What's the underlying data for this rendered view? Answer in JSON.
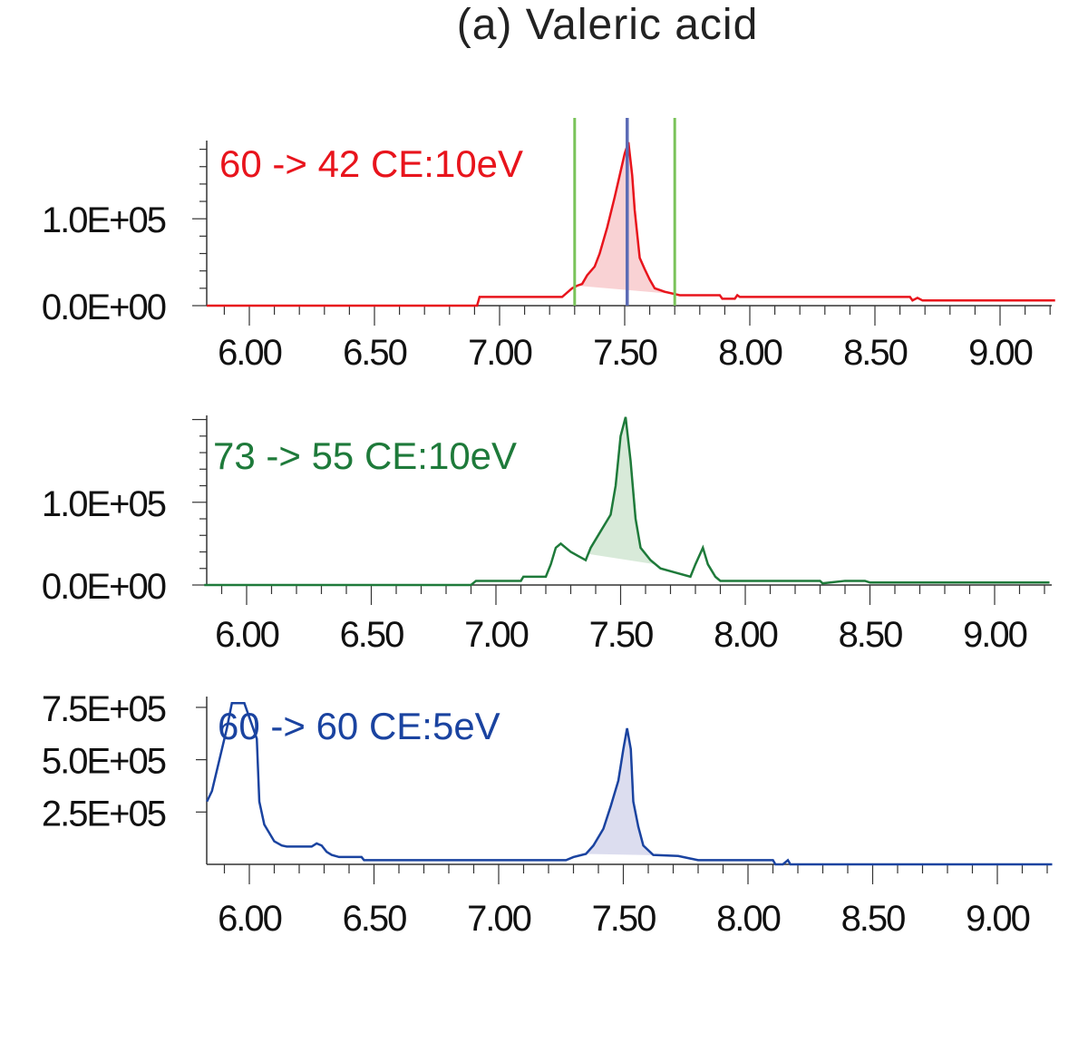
{
  "title": "(a) Valeric acid",
  "chart_data": [
    {
      "type": "line",
      "series_name": "60 -> 42 CE:10eV",
      "color": "#e8141c",
      "fill_color": "#f9d2d4",
      "xlim": [
        5.83,
        9.22
      ],
      "ylim": [
        0,
        190000
      ],
      "x_ticks": [
        "6.00",
        "6.50",
        "7.00",
        "7.50",
        "8.00",
        "8.50",
        "9.00"
      ],
      "y_ticks": [
        {
          "value": 0,
          "label": "0.0E+00"
        },
        {
          "value": 100000,
          "label": "1.0E+05"
        }
      ],
      "integration_bounds": [
        7.3,
        7.7
      ],
      "retention_marker": 7.51,
      "bound_color": "#7ac35a",
      "marker_color": "#5b6bb5",
      "shaded_range": [
        7.31,
        7.7
      ],
      "points": [
        [
          5.83,
          0
        ],
        [
          6.91,
          0
        ],
        [
          6.92,
          10000
        ],
        [
          7.25,
          10000
        ],
        [
          7.29,
          20000
        ],
        [
          7.31,
          23000
        ],
        [
          7.33,
          25000
        ],
        [
          7.35,
          35000
        ],
        [
          7.38,
          45000
        ],
        [
          7.4,
          60000
        ],
        [
          7.43,
          90000
        ],
        [
          7.46,
          125000
        ],
        [
          7.48,
          150000
        ],
        [
          7.5,
          175000
        ],
        [
          7.515,
          188000
        ],
        [
          7.53,
          150000
        ],
        [
          7.54,
          110000
        ],
        [
          7.56,
          55000
        ],
        [
          7.58,
          42000
        ],
        [
          7.6,
          30000
        ],
        [
          7.62,
          20000
        ],
        [
          7.66,
          16000
        ],
        [
          7.72,
          12000
        ],
        [
          7.88,
          12000
        ],
        [
          7.89,
          8000
        ],
        [
          7.94,
          8000
        ],
        [
          7.95,
          12000
        ],
        [
          7.96,
          10000
        ],
        [
          8.64,
          10000
        ],
        [
          8.65,
          6000
        ],
        [
          8.67,
          9000
        ],
        [
          8.69,
          6000
        ],
        [
          9.22,
          6000
        ]
      ]
    },
    {
      "type": "line",
      "series_name": "73 -> 55 CE:10eV",
      "color": "#1e7a3a",
      "fill_color": "#d8ead9",
      "xlim": [
        5.83,
        9.22
      ],
      "ylim": [
        0,
        205000
      ],
      "x_ticks": [
        "6.00",
        "6.50",
        "7.00",
        "7.50",
        "8.00",
        "8.50",
        "9.00"
      ],
      "y_ticks": [
        {
          "value": 0,
          "label": "0.0E+00"
        },
        {
          "value": 100000,
          "label": "1.0E+05"
        }
      ],
      "shaded_range": [
        7.37,
        7.64
      ],
      "points": [
        [
          5.83,
          0
        ],
        [
          6.9,
          0
        ],
        [
          6.92,
          5000
        ],
        [
          7.1,
          5000
        ],
        [
          7.11,
          10000
        ],
        [
          7.2,
          10000
        ],
        [
          7.22,
          25000
        ],
        [
          7.24,
          45000
        ],
        [
          7.26,
          50000
        ],
        [
          7.28,
          45000
        ],
        [
          7.3,
          40000
        ],
        [
          7.33,
          35000
        ],
        [
          7.36,
          30000
        ],
        [
          7.38,
          45000
        ],
        [
          7.42,
          65000
        ],
        [
          7.46,
          85000
        ],
        [
          7.48,
          120000
        ],
        [
          7.5,
          180000
        ],
        [
          7.52,
          203000
        ],
        [
          7.54,
          150000
        ],
        [
          7.56,
          80000
        ],
        [
          7.58,
          45000
        ],
        [
          7.62,
          30000
        ],
        [
          7.66,
          20000
        ],
        [
          7.72,
          15000
        ],
        [
          7.78,
          10000
        ],
        [
          7.8,
          25000
        ],
        [
          7.83,
          45000
        ],
        [
          7.85,
          25000
        ],
        [
          7.88,
          10000
        ],
        [
          7.9,
          5000
        ],
        [
          8.3,
          5000
        ],
        [
          8.31,
          2000
        ],
        [
          8.4,
          5000
        ],
        [
          8.48,
          5000
        ],
        [
          8.5,
          3000
        ],
        [
          9.22,
          3000
        ]
      ]
    },
    {
      "type": "line",
      "series_name": "60 -> 60 CE:5eV",
      "color": "#1a43a0",
      "fill_color": "#dcddef",
      "xlim": [
        5.83,
        9.22
      ],
      "ylim": [
        0,
        780000
      ],
      "x_ticks": [
        "6.00",
        "6.50",
        "7.00",
        "7.50",
        "8.00",
        "8.50",
        "9.00"
      ],
      "y_ticks": [
        {
          "value": 250000,
          "label": "2.5E+05"
        },
        {
          "value": 500000,
          "label": "5.0E+05"
        },
        {
          "value": 750000,
          "label": "7.5E+05"
        }
      ],
      "shaded_range": [
        7.35,
        7.66
      ],
      "points": [
        [
          5.83,
          300000
        ],
        [
          5.85,
          350000
        ],
        [
          5.87,
          450000
        ],
        [
          5.89,
          550000
        ],
        [
          5.91,
          650000
        ],
        [
          5.93,
          770000
        ],
        [
          5.98,
          770000
        ],
        [
          6.03,
          600000
        ],
        [
          6.04,
          300000
        ],
        [
          6.06,
          190000
        ],
        [
          6.08,
          150000
        ],
        [
          6.1,
          110000
        ],
        [
          6.13,
          90000
        ],
        [
          6.15,
          85000
        ],
        [
          6.25,
          85000
        ],
        [
          6.27,
          100000
        ],
        [
          6.29,
          90000
        ],
        [
          6.31,
          60000
        ],
        [
          6.33,
          45000
        ],
        [
          6.36,
          35000
        ],
        [
          6.45,
          35000
        ],
        [
          6.46,
          20000
        ],
        [
          7.27,
          20000
        ],
        [
          7.3,
          35000
        ],
        [
          7.35,
          50000
        ],
        [
          7.38,
          90000
        ],
        [
          7.42,
          170000
        ],
        [
          7.45,
          280000
        ],
        [
          7.48,
          400000
        ],
        [
          7.5,
          550000
        ],
        [
          7.515,
          650000
        ],
        [
          7.53,
          550000
        ],
        [
          7.54,
          300000
        ],
        [
          7.56,
          180000
        ],
        [
          7.58,
          90000
        ],
        [
          7.62,
          45000
        ],
        [
          7.72,
          40000
        ],
        [
          7.8,
          20000
        ],
        [
          8.1,
          20000
        ],
        [
          8.11,
          0
        ],
        [
          8.14,
          0
        ],
        [
          8.16,
          20000
        ],
        [
          8.17,
          0
        ],
        [
          9.22,
          0
        ]
      ]
    }
  ]
}
